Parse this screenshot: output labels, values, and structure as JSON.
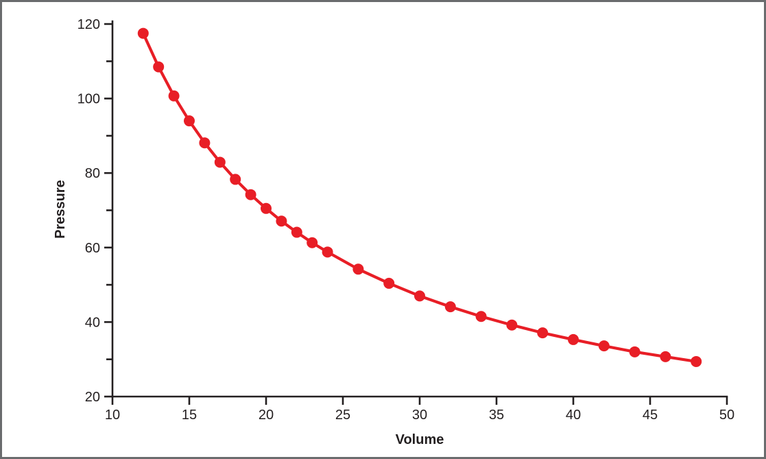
{
  "chart_data": {
    "type": "line",
    "title": "",
    "xlabel": "Volume",
    "ylabel": "Pressure",
    "x": [
      12,
      13,
      14,
      15,
      16,
      17,
      18,
      19,
      20,
      21,
      22,
      23,
      24,
      26,
      28,
      30,
      32,
      34,
      36,
      38,
      40,
      42,
      44,
      46,
      48
    ],
    "series": [
      {
        "name": "Pressure",
        "values": [
          117.5,
          108.5,
          100.7,
          94.0,
          88.1,
          82.9,
          78.3,
          74.2,
          70.5,
          67.1,
          64.1,
          61.3,
          58.8,
          54.2,
          50.4,
          47.0,
          44.1,
          41.5,
          39.2,
          37.1,
          35.3,
          33.6,
          32.0,
          30.7,
          29.4
        ]
      }
    ],
    "xlim": [
      10,
      50
    ],
    "ylim": [
      20,
      120
    ],
    "x_ticks": [
      10,
      15,
      20,
      25,
      30,
      35,
      40,
      45,
      50
    ],
    "y_ticks_labeled": [
      20,
      40,
      60,
      80,
      100,
      120
    ],
    "y_ticks_minor": [
      30,
      50,
      70,
      90,
      110
    ],
    "grid": false,
    "legend": false,
    "marker": "circle",
    "line_color": "#e81e26",
    "marker_color": "#e81e26",
    "axis_color": "#231f20"
  },
  "frame": {
    "background": "#ffffff",
    "border_color": "#6a6c6e"
  }
}
